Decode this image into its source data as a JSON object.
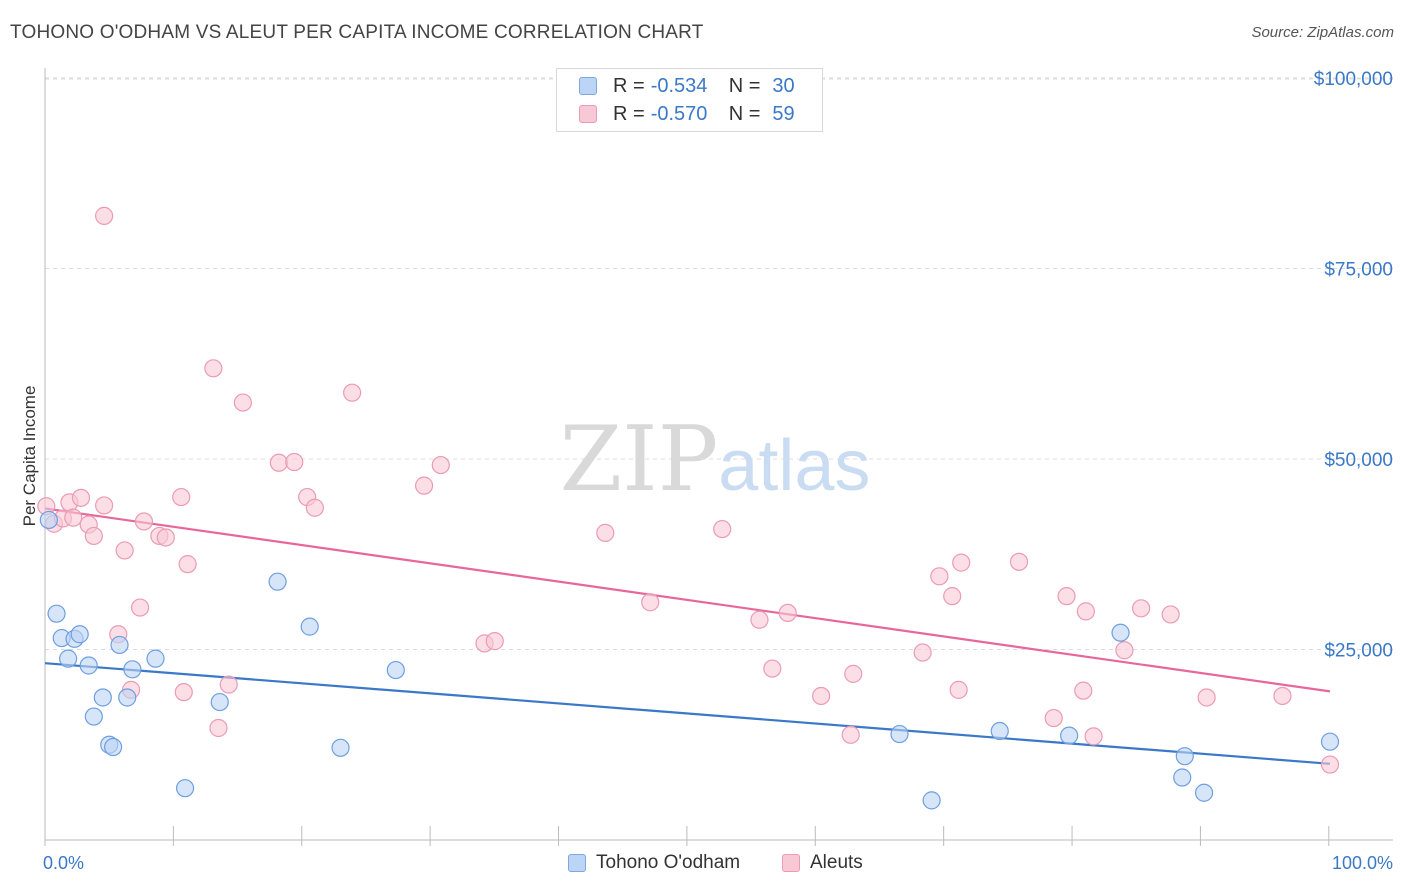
{
  "title": "TOHONO O'ODHAM VS ALEUT PER CAPITA INCOME CORRELATION CHART",
  "source": "Source: ZipAtlas.com",
  "legend": {
    "r_label": "R =",
    "n_label": "N =",
    "series1": {
      "r": "-0.534",
      "n": "30"
    },
    "series2": {
      "r": "-0.570",
      "n": "59"
    }
  },
  "bottom_legend": {
    "series1": "Tohono O'odham",
    "series2": "Aleuts"
  },
  "watermark": "ZIPatlas",
  "colors": {
    "blue": "#3a78c8",
    "blue_fill": "#bcd4f5",
    "pink": "#e8679a",
    "pink_fill": "#f9c8d6"
  },
  "chart_data": {
    "type": "scatter",
    "title": "TOHONO O'ODHAM VS ALEUT PER CAPITA INCOME CORRELATION CHART",
    "xlabel": "",
    "ylabel": "Per Capita Income",
    "xlim": [
      0,
      100
    ],
    "ylim": [
      0,
      102000
    ],
    "x_tick_labels": [
      "0.0%",
      "100.0%"
    ],
    "y_ticks": [
      25000,
      50000,
      75000,
      100000
    ],
    "y_tick_labels": [
      "$25,000",
      "$50,000",
      "$75,000",
      "$100,000"
    ],
    "series": [
      {
        "name": "Tohono O'odham",
        "r": -0.534,
        "n": 30,
        "trend": {
          "x": [
            0,
            100
          ],
          "y": [
            23200,
            10000
          ]
        },
        "points": [
          {
            "x": 0.3,
            "y": 42000
          },
          {
            "x": 0.9,
            "y": 29700
          },
          {
            "x": 1.3,
            "y": 26500
          },
          {
            "x": 1.8,
            "y": 23800
          },
          {
            "x": 2.3,
            "y": 26400
          },
          {
            "x": 2.7,
            "y": 27000
          },
          {
            "x": 3.4,
            "y": 22900
          },
          {
            "x": 3.8,
            "y": 16200
          },
          {
            "x": 4.5,
            "y": 18700
          },
          {
            "x": 5.0,
            "y": 12500
          },
          {
            "x": 5.3,
            "y": 12200
          },
          {
            "x": 5.8,
            "y": 25600
          },
          {
            "x": 6.4,
            "y": 18700
          },
          {
            "x": 6.8,
            "y": 22400
          },
          {
            "x": 8.6,
            "y": 23800
          },
          {
            "x": 10.9,
            "y": 6800
          },
          {
            "x": 13.6,
            "y": 18100
          },
          {
            "x": 18.1,
            "y": 33900
          },
          {
            "x": 20.6,
            "y": 28000
          },
          {
            "x": 23.0,
            "y": 12100
          },
          {
            "x": 27.3,
            "y": 22300
          },
          {
            "x": 66.5,
            "y": 13900
          },
          {
            "x": 69.0,
            "y": 5200
          },
          {
            "x": 74.3,
            "y": 14300
          },
          {
            "x": 79.7,
            "y": 13700
          },
          {
            "x": 83.7,
            "y": 27200
          },
          {
            "x": 88.5,
            "y": 8200
          },
          {
            "x": 88.7,
            "y": 11000
          },
          {
            "x": 90.2,
            "y": 6200
          },
          {
            "x": 100.0,
            "y": 12900
          }
        ]
      },
      {
        "name": "Aleuts",
        "r": -0.57,
        "n": 59,
        "trend": {
          "x": [
            0,
            100
          ],
          "y": [
            43500,
            19500
          ]
        },
        "points": [
          {
            "x": 0.1,
            "y": 43800
          },
          {
            "x": 0.7,
            "y": 41500
          },
          {
            "x": 1.4,
            "y": 42200
          },
          {
            "x": 1.9,
            "y": 44300
          },
          {
            "x": 2.2,
            "y": 42300
          },
          {
            "x": 2.8,
            "y": 44900
          },
          {
            "x": 3.4,
            "y": 41400
          },
          {
            "x": 3.8,
            "y": 39900
          },
          {
            "x": 4.6,
            "y": 43900
          },
          {
            "x": 4.6,
            "y": 81900
          },
          {
            "x": 5.7,
            "y": 27000
          },
          {
            "x": 6.2,
            "y": 38000
          },
          {
            "x": 6.7,
            "y": 19700
          },
          {
            "x": 7.4,
            "y": 30500
          },
          {
            "x": 7.7,
            "y": 41800
          },
          {
            "x": 8.9,
            "y": 39900
          },
          {
            "x": 9.4,
            "y": 39700
          },
          {
            "x": 10.6,
            "y": 45000
          },
          {
            "x": 10.8,
            "y": 19400
          },
          {
            "x": 11.1,
            "y": 36200
          },
          {
            "x": 13.1,
            "y": 61900
          },
          {
            "x": 13.5,
            "y": 14700
          },
          {
            "x": 14.3,
            "y": 20400
          },
          {
            "x": 15.4,
            "y": 57400
          },
          {
            "x": 18.2,
            "y": 49500
          },
          {
            "x": 19.4,
            "y": 49600
          },
          {
            "x": 20.4,
            "y": 45000
          },
          {
            "x": 21.0,
            "y": 43600
          },
          {
            "x": 23.9,
            "y": 58700
          },
          {
            "x": 29.5,
            "y": 46500
          },
          {
            "x": 30.8,
            "y": 49200
          },
          {
            "x": 34.2,
            "y": 25800
          },
          {
            "x": 35.0,
            "y": 26100
          },
          {
            "x": 43.6,
            "y": 40300
          },
          {
            "x": 47.1,
            "y": 31200
          },
          {
            "x": 52.7,
            "y": 40800
          },
          {
            "x": 55.6,
            "y": 28900
          },
          {
            "x": 56.6,
            "y": 22500
          },
          {
            "x": 57.8,
            "y": 29800
          },
          {
            "x": 60.4,
            "y": 18900
          },
          {
            "x": 62.7,
            "y": 13800
          },
          {
            "x": 62.9,
            "y": 21800
          },
          {
            "x": 68.3,
            "y": 24600
          },
          {
            "x": 69.6,
            "y": 34600
          },
          {
            "x": 70.6,
            "y": 32000
          },
          {
            "x": 71.1,
            "y": 19700
          },
          {
            "x": 71.3,
            "y": 36400
          },
          {
            "x": 75.8,
            "y": 36500
          },
          {
            "x": 78.5,
            "y": 16000
          },
          {
            "x": 79.5,
            "y": 32000
          },
          {
            "x": 80.8,
            "y": 19600
          },
          {
            "x": 81.0,
            "y": 30000
          },
          {
            "x": 81.6,
            "y": 13600
          },
          {
            "x": 84.0,
            "y": 24900
          },
          {
            "x": 85.3,
            "y": 30400
          },
          {
            "x": 87.6,
            "y": 29600
          },
          {
            "x": 90.4,
            "y": 18700
          },
          {
            "x": 96.3,
            "y": 18900
          },
          {
            "x": 100.0,
            "y": 9900
          }
        ]
      }
    ]
  }
}
